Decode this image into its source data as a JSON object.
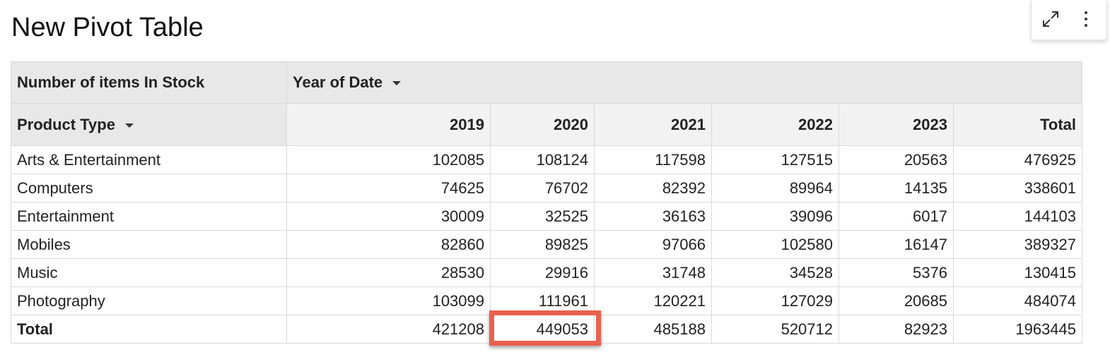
{
  "title": "New Pivot Table",
  "toolbar": {
    "icons": [
      "expand-icon",
      "more-vertical-icon"
    ]
  },
  "pivot": {
    "measure": "Number of items In Stock",
    "column_field": "Year of Date",
    "row_field": "Product Type",
    "columns": [
      "2019",
      "2020",
      "2021",
      "2022",
      "2023",
      "Total"
    ],
    "rows": [
      {
        "label": "Arts & Entertainment",
        "values": [
          "102085",
          "108124",
          "117598",
          "127515",
          "20563",
          "476925"
        ]
      },
      {
        "label": "Computers",
        "values": [
          "74625",
          "76702",
          "82392",
          "89964",
          "14135",
          "338601"
        ]
      },
      {
        "label": "Entertainment",
        "values": [
          "30009",
          "32525",
          "36163",
          "39096",
          "6017",
          "144103"
        ]
      },
      {
        "label": "Mobiles",
        "values": [
          "82860",
          "89825",
          "97066",
          "102580",
          "16147",
          "389327"
        ]
      },
      {
        "label": "Music",
        "values": [
          "28530",
          "29916",
          "31748",
          "34528",
          "5376",
          "130415"
        ]
      },
      {
        "label": "Photography",
        "values": [
          "103099",
          "111961",
          "120221",
          "127029",
          "20685",
          "484074"
        ]
      }
    ],
    "total": {
      "label": "Total",
      "values": [
        "421208",
        "449053",
        "485188",
        "520712",
        "82923",
        "1963445"
      ]
    },
    "highlight_color": "#e8604f"
  }
}
